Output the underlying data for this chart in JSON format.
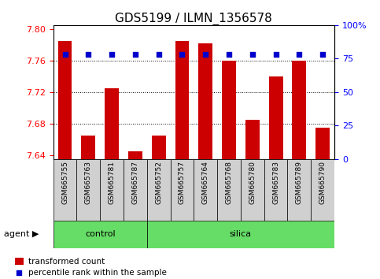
{
  "title": "GDS5199 / ILMN_1356578",
  "samples": [
    "GSM665755",
    "GSM665763",
    "GSM665781",
    "GSM665787",
    "GSM665752",
    "GSM665757",
    "GSM665764",
    "GSM665768",
    "GSM665780",
    "GSM665783",
    "GSM665789",
    "GSM665790"
  ],
  "bar_values": [
    7.785,
    7.665,
    7.725,
    7.645,
    7.665,
    7.785,
    7.782,
    7.76,
    7.685,
    7.74,
    7.76,
    7.675
  ],
  "percentile_values": [
    78,
    78,
    78,
    78,
    78,
    78,
    78,
    78,
    78,
    78,
    78,
    78
  ],
  "bar_color": "#cc0000",
  "percentile_color": "#0000cc",
  "ylim_left": [
    7.635,
    7.805
  ],
  "ylim_right": [
    0,
    100
  ],
  "yticks_left": [
    7.64,
    7.68,
    7.72,
    7.76,
    7.8
  ],
  "yticks_right": [
    0,
    25,
    50,
    75,
    100
  ],
  "ytick_right_labels": [
    "0",
    "25",
    "50",
    "75",
    "100%"
  ],
  "control_samples": 4,
  "control_label": "control",
  "silica_label": "silica",
  "agent_label": "agent",
  "legend_bar_label": "transformed count",
  "legend_percentile_label": "percentile rank within the sample",
  "plot_bg_color": "#ffffff",
  "bar_width": 0.6,
  "title_fontsize": 11,
  "tick_fontsize": 8,
  "sample_fontsize": 6.5,
  "green_color": "#66dd66",
  "gray_color": "#d0d0d0"
}
